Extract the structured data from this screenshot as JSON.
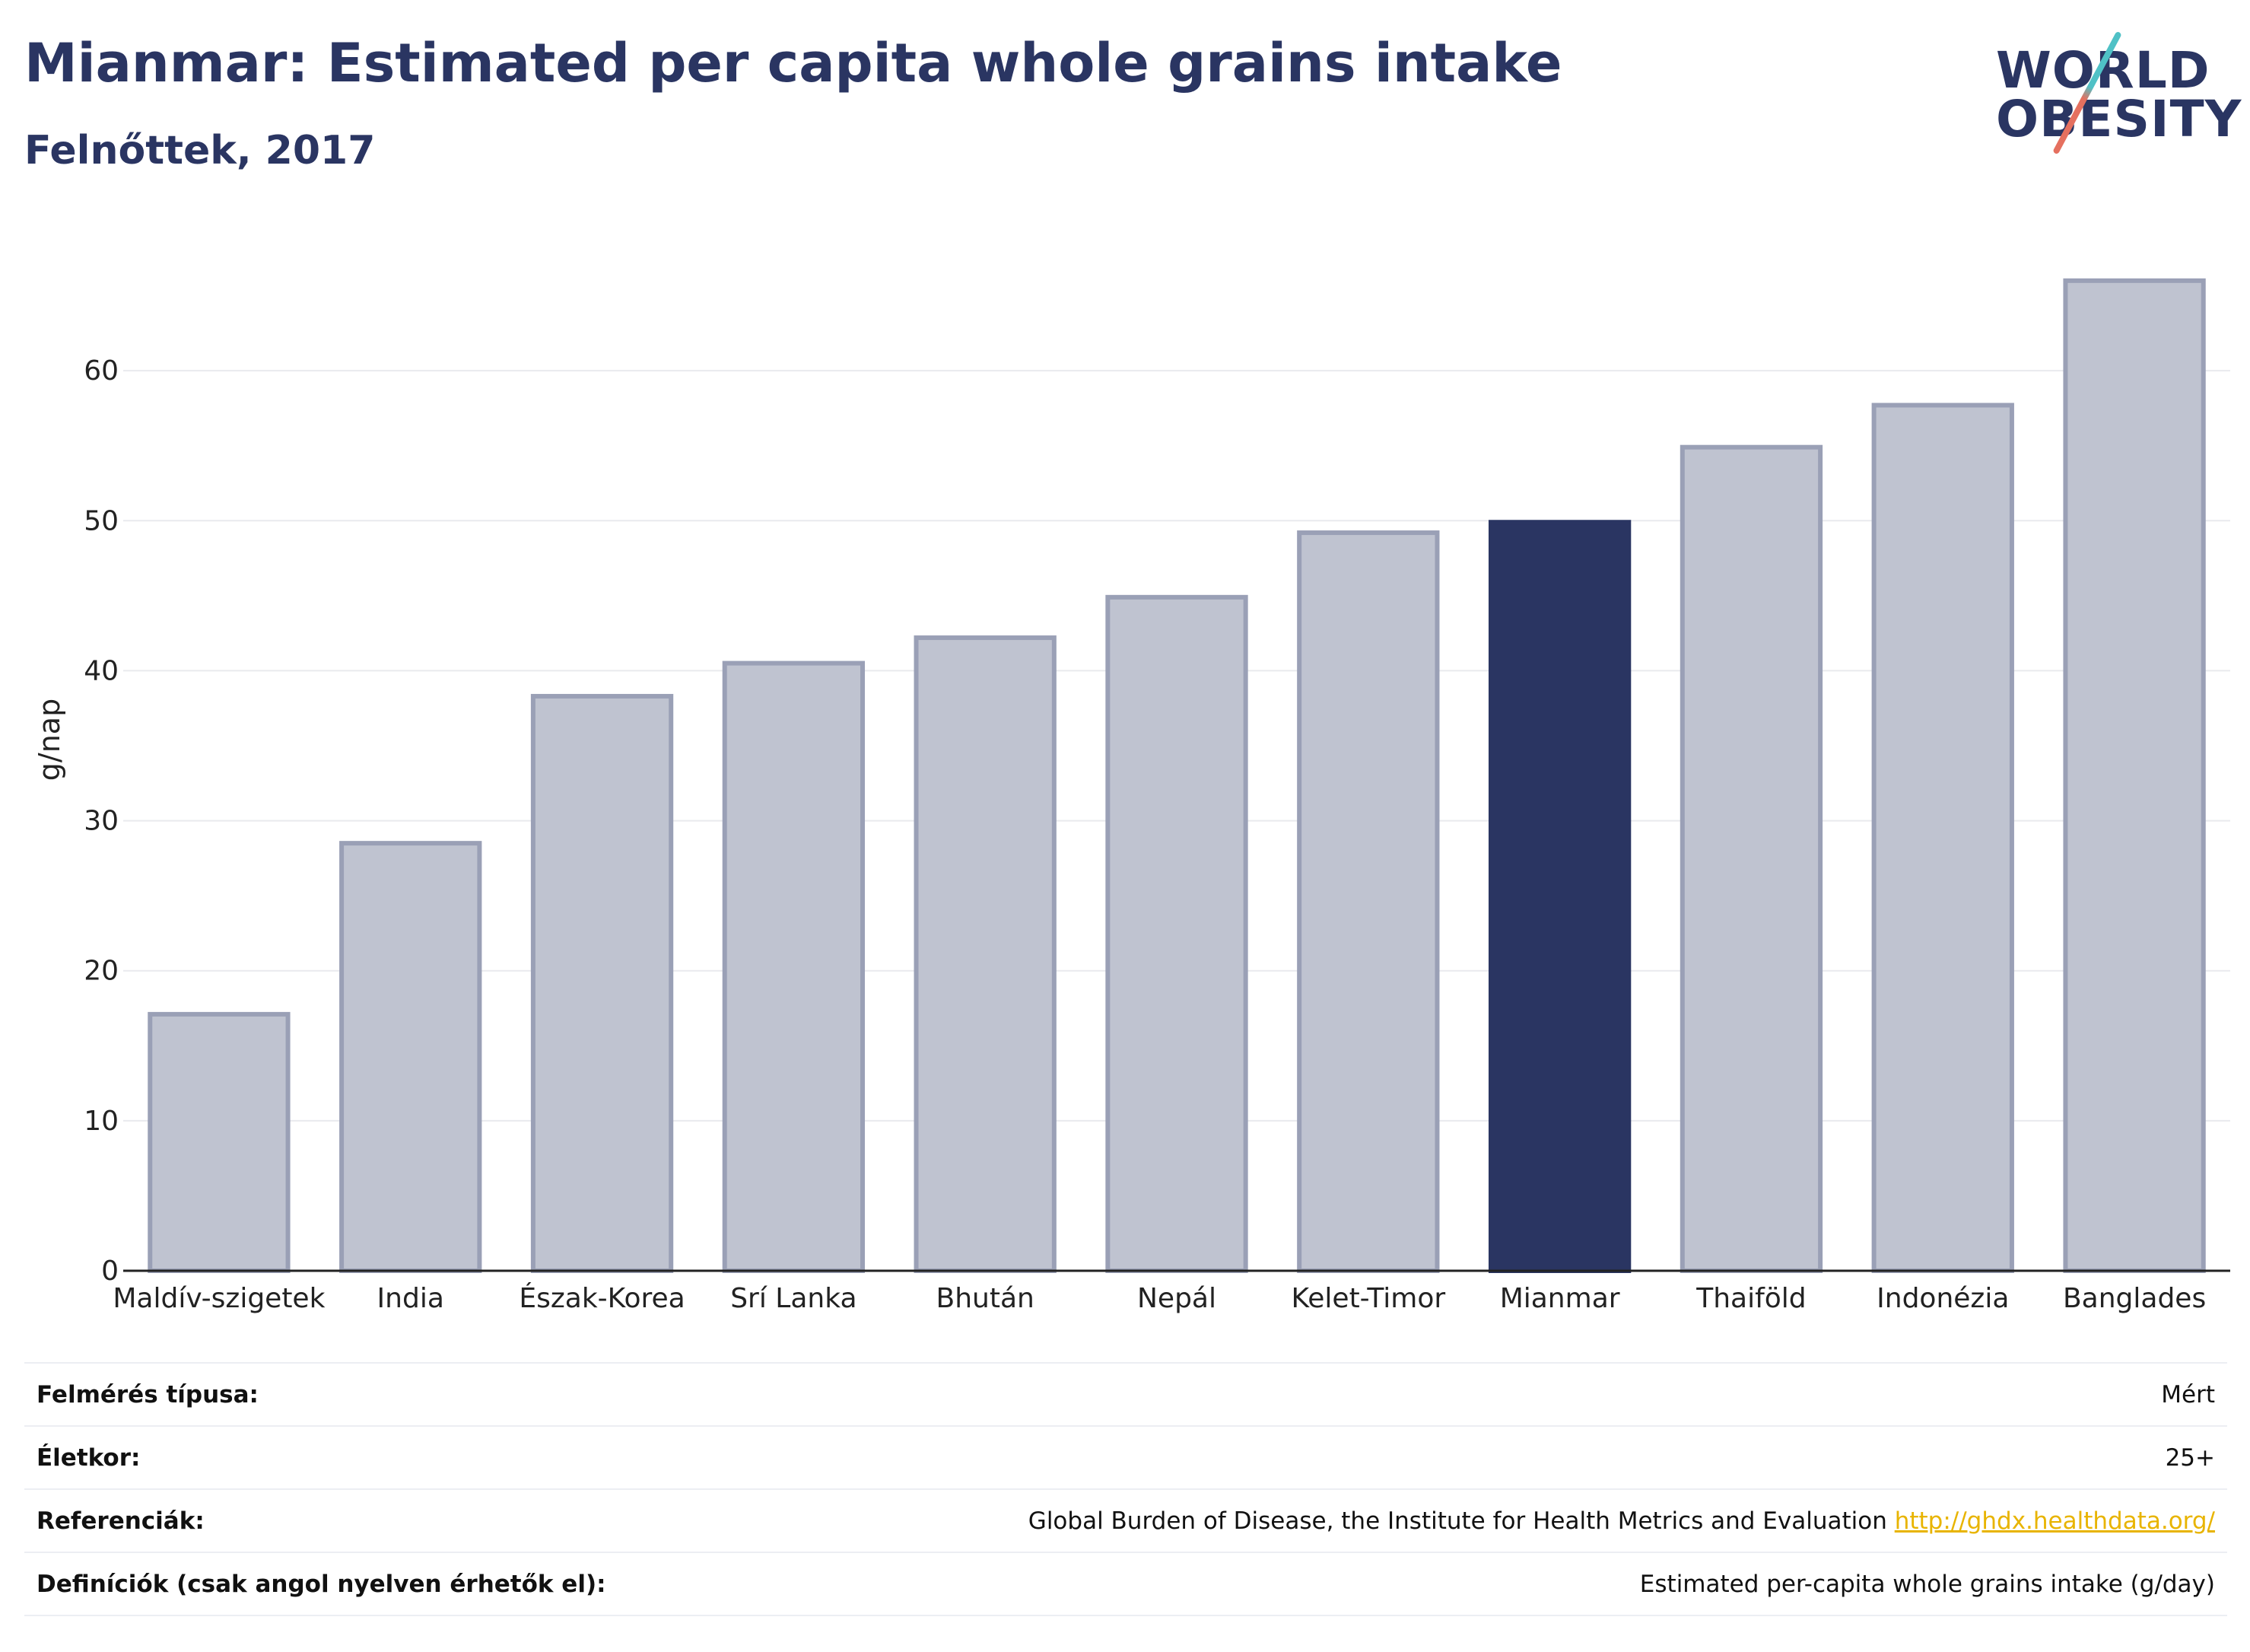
{
  "header": {
    "title": "Mianmar: Estimated per capita whole grains intake",
    "subtitle": "Felnőttek, 2017"
  },
  "logo": {
    "line1": "WORLD",
    "line2": "OBESITY"
  },
  "colors": {
    "highlight": "#2a3562",
    "bar": "#bfc3d0",
    "bar_border": "#9aa0b6"
  },
  "chart_data": {
    "type": "bar",
    "title": "Mianmar: Estimated per capita whole grains intake",
    "subtitle": "Felnőttek, 2017",
    "xlabel": "",
    "ylabel": "g/nap",
    "ylim": [
      0,
      70
    ],
    "yticks": [
      0,
      10,
      20,
      30,
      40,
      50,
      60
    ],
    "grid": true,
    "highlight_category": "Mianmar",
    "categories": [
      "Maldív-szigetek",
      "India",
      "Észak-Korea",
      "Srí Lanka",
      "Bhután",
      "Nepál",
      "Kelet-Timor",
      "Mianmar",
      "Thaiföld",
      "Indonézia",
      "Banglades"
    ],
    "values": [
      17.1,
      28.5,
      38.3,
      40.5,
      42.2,
      44.9,
      49.2,
      49.9,
      54.9,
      57.7,
      66.0
    ]
  },
  "info": {
    "rows": [
      {
        "key": "Felmérés típusa:",
        "value": "Mért"
      },
      {
        "key": "Életkor:",
        "value": "25+"
      },
      {
        "key": "Referenciák:",
        "value": "Global Burden of Disease, the Institute for Health Metrics and Evaluation",
        "link": "http://ghdx.healthdata.org/"
      },
      {
        "key": "Definíciók (csak angol nyelven érhetők el):",
        "value": "Estimated per-capita whole grains intake (g/day)"
      }
    ]
  }
}
